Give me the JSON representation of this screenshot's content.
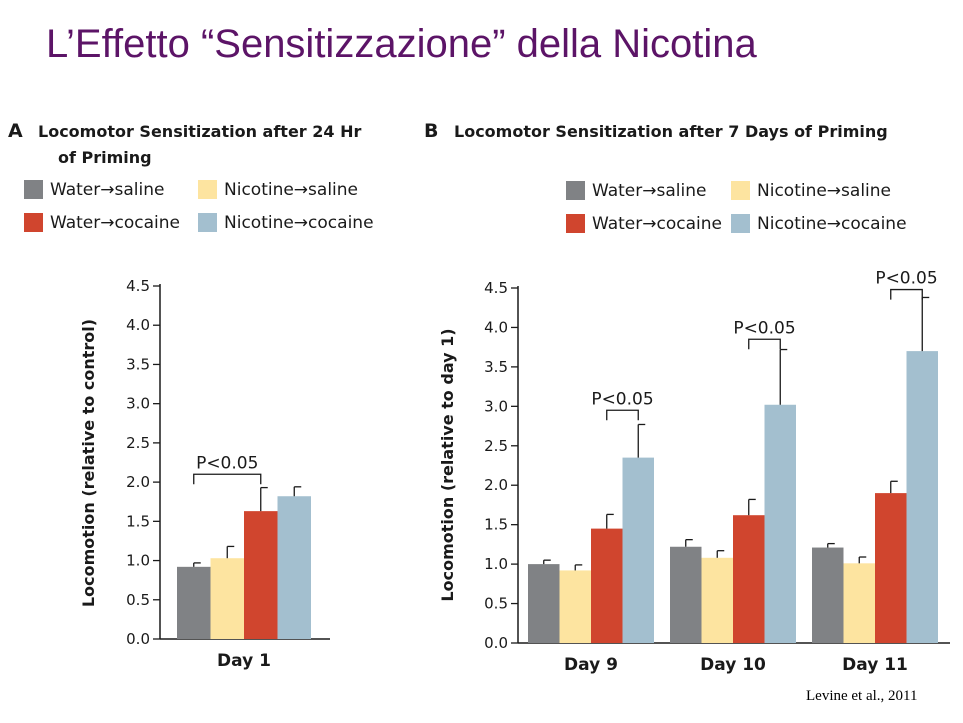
{
  "slide": {
    "title": "L’Effetto “Sensitizzazione” della Nicotina",
    "citation": "Levine et al., 2011"
  },
  "colors": {
    "title": "#5c1467",
    "water_saline": "#808285",
    "nicotine_saline": "#fde4a0",
    "water_cocaine": "#d0452e",
    "nicotine_cocaine": "#a3bfcf"
  },
  "chart_data": [
    {
      "type": "bar",
      "panel": "A",
      "title": "Locomotor Sensitization after 24 Hr of Priming",
      "title_lines": [
        "Locomotor Sensitization after 24 Hr",
        "of Priming"
      ],
      "ylabel": "Locomotion (relative to control)",
      "xlabel": "",
      "ylim": [
        0,
        4.5
      ],
      "yticks": [
        "0.0",
        "0.5",
        "1.0",
        "1.5",
        "2.0",
        "2.5",
        "3.0",
        "3.5",
        "4.0",
        "4.5"
      ],
      "categories": [
        "Day 1"
      ],
      "legend": [
        "Water→saline",
        "Nicotine→saline",
        "Water→cocaine",
        "Nicotine→cocaine"
      ],
      "series": [
        {
          "name": "Water→saline",
          "values": [
            0.92
          ],
          "errors": [
            0.05
          ]
        },
        {
          "name": "Nicotine→saline",
          "values": [
            1.03
          ],
          "errors": [
            0.15
          ]
        },
        {
          "name": "Water→cocaine",
          "values": [
            1.63
          ],
          "errors": [
            0.3
          ]
        },
        {
          "name": "Nicotine→cocaine",
          "values": [
            1.82
          ],
          "errors": [
            0.12
          ]
        }
      ],
      "annotations": [
        {
          "text": "P<0.05",
          "category": 0,
          "from_series": 0,
          "to_series": 2,
          "level": 2.1
        }
      ]
    },
    {
      "type": "bar",
      "panel": "B",
      "title": "Locomotor Sensitization after 7 Days of Priming",
      "title_lines": [
        "Locomotor Sensitization after 7 Days of Priming"
      ],
      "ylabel": "Locomotion (relative to day 1)",
      "xlabel": "",
      "ylim": [
        0,
        4.5
      ],
      "yticks": [
        "0.0",
        "0.5",
        "1.0",
        "1.5",
        "2.0",
        "2.5",
        "3.0",
        "3.5",
        "4.0",
        "4.5"
      ],
      "categories": [
        "Day 9",
        "Day 10",
        "Day 11"
      ],
      "legend": [
        "Water→saline",
        "Nicotine→saline",
        "Water→cocaine",
        "Nicotine→cocaine"
      ],
      "series": [
        {
          "name": "Water→saline",
          "values": [
            1.0,
            1.22,
            1.21
          ],
          "errors": [
            0.05,
            0.09,
            0.05
          ]
        },
        {
          "name": "Nicotine→saline",
          "values": [
            0.92,
            1.08,
            1.01
          ],
          "errors": [
            0.07,
            0.09,
            0.08
          ]
        },
        {
          "name": "Water→cocaine",
          "values": [
            1.45,
            1.62,
            1.9
          ],
          "errors": [
            0.18,
            0.2,
            0.15
          ]
        },
        {
          "name": "Nicotine→cocaine",
          "values": [
            2.35,
            3.02,
            3.7
          ],
          "errors": [
            0.42,
            0.7,
            0.68
          ]
        }
      ],
      "annotations": [
        {
          "text": "P<0.05",
          "category": 0,
          "from_series": 2,
          "to_series": 3,
          "level": 2.95
        },
        {
          "text": "P<0.05",
          "category": 1,
          "from_series": 2,
          "to_series": 3,
          "level": 3.85
        },
        {
          "text": "P<0.05",
          "category": 2,
          "from_series": 2,
          "to_series": 3,
          "level": 4.48
        }
      ]
    }
  ]
}
